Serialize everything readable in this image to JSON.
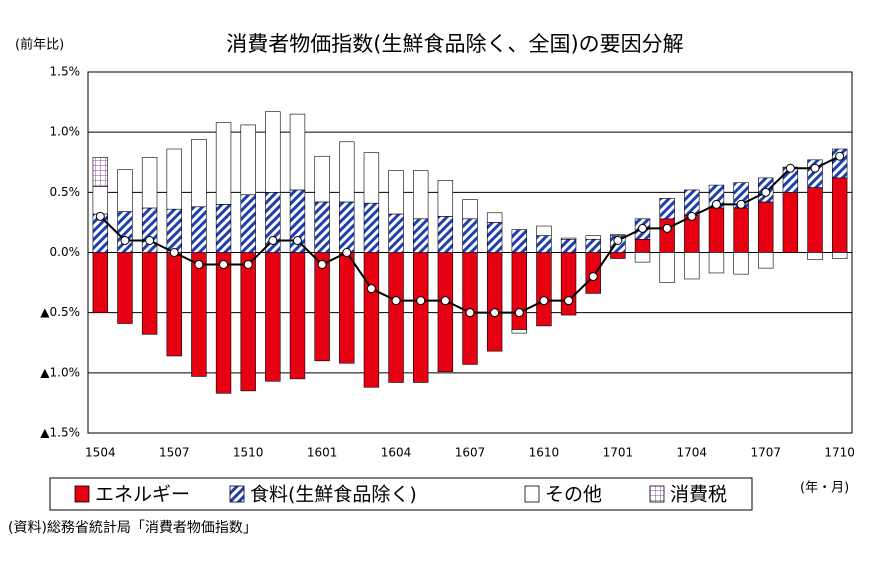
{
  "chart_data": {
    "type": "bar",
    "title": "消費者物価指数(生鮮食品除く、全国)の要因分解",
    "y_label": "(前年比)",
    "x_label": "(年・月)",
    "source": "(資料)総務省統計局「消費者物価指数」",
    "categories": [
      "1504",
      null,
      null,
      "1507",
      null,
      null,
      "1510",
      null,
      null,
      "1601",
      null,
      null,
      "1604",
      null,
      null,
      "1607",
      null,
      null,
      "1610",
      null,
      null,
      "1701",
      null,
      null,
      "1704",
      null,
      null,
      "1707",
      null,
      null,
      "1710"
    ],
    "series": [
      {
        "name": "エネルギー",
        "color": "#e60012",
        "pattern": "solid",
        "values": [
          -0.5,
          -0.59,
          -0.68,
          -0.86,
          -1.03,
          -1.17,
          -1.15,
          -1.07,
          -1.05,
          -0.9,
          -0.92,
          -1.12,
          -1.08,
          -1.08,
          -0.99,
          -0.93,
          -0.82,
          -0.64,
          -0.61,
          -0.52,
          -0.34,
          -0.05,
          0.11,
          0.28,
          0.31,
          0.37,
          0.37,
          0.42,
          0.5,
          0.54,
          0.62
        ]
      },
      {
        "name": "食料(生鮮食品除く)",
        "color": "#1f3fb0",
        "pattern": "hatch",
        "values": [
          0.32,
          0.34,
          0.37,
          0.36,
          0.38,
          0.4,
          0.48,
          0.5,
          0.52,
          0.42,
          0.42,
          0.41,
          0.32,
          0.28,
          0.3,
          0.28,
          0.25,
          0.19,
          0.14,
          0.11,
          0.11,
          0.14,
          0.17,
          0.17,
          0.21,
          0.19,
          0.21,
          0.2,
          0.21,
          0.23,
          0.24
        ]
      },
      {
        "name": "その他",
        "color": "#ffffff",
        "pattern": "solid",
        "values": [
          0.23,
          0.35,
          0.42,
          0.5,
          0.56,
          0.68,
          0.58,
          0.67,
          0.63,
          0.38,
          0.5,
          0.42,
          0.36,
          0.4,
          0.3,
          0.16,
          0.08,
          -0.03,
          0.08,
          0.01,
          0.03,
          0.01,
          -0.08,
          -0.25,
          -0.22,
          -0.17,
          -0.18,
          -0.13,
          0,
          -0.06,
          -0.05
        ]
      },
      {
        "name": "消費税",
        "color": "#8a4b9a",
        "pattern": "grid",
        "values": [
          0.24,
          0,
          0,
          0,
          0,
          0,
          0,
          0,
          0,
          0,
          0,
          0,
          0,
          0,
          0,
          0,
          0,
          0,
          0,
          0,
          0,
          0,
          0,
          0,
          0,
          0,
          0,
          0,
          0,
          0,
          0
        ]
      }
    ],
    "line": {
      "color": "#000000",
      "values": [
        0.3,
        0.1,
        0.1,
        0,
        -0.1,
        -0.1,
        -0.1,
        0.1,
        0.1,
        -0.1,
        0,
        -0.3,
        -0.4,
        -0.4,
        -0.4,
        -0.5,
        -0.5,
        -0.5,
        -0.4,
        -0.4,
        -0.2,
        0.1,
        0.2,
        0.2,
        0.3,
        0.4,
        0.4,
        0.5,
        0.7,
        0.7,
        0.8
      ]
    },
    "ylim": [
      -1.5,
      1.5
    ],
    "yticks": [
      {
        "value": 1.5,
        "label": "1.5%"
      },
      {
        "value": 1.0,
        "label": "1.0%"
      },
      {
        "value": 0.5,
        "label": "0.5%"
      },
      {
        "value": 0,
        "label": "0.0%"
      },
      {
        "value": -0.5,
        "label": "▲0.5%"
      },
      {
        "value": -1.0,
        "label": "▲1.0%"
      },
      {
        "value": -1.5,
        "label": "▲1.5%"
      }
    ],
    "grid": true
  }
}
